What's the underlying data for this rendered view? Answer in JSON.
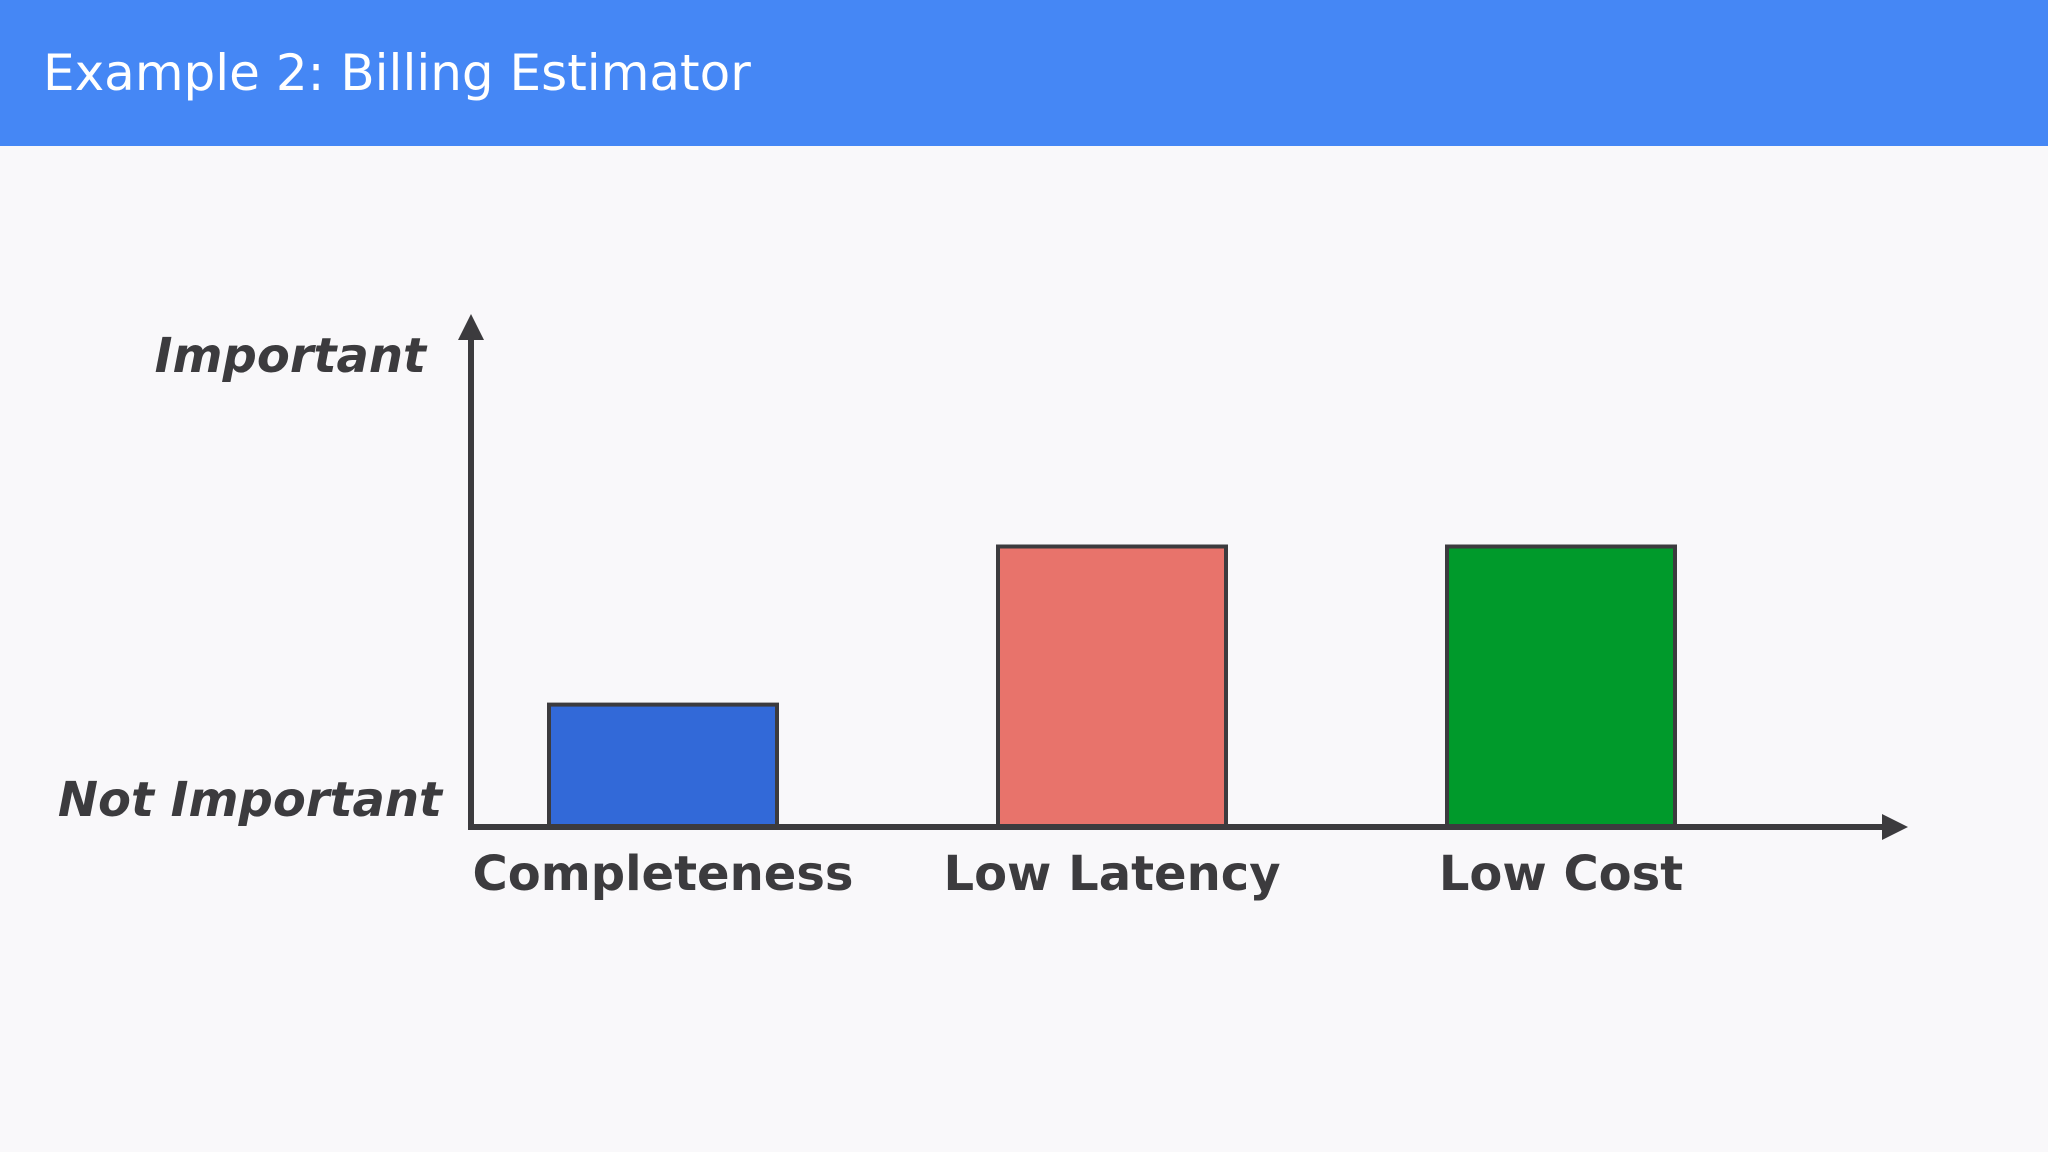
{
  "slide": {
    "title": "Example 2: Billing Estimator"
  },
  "chart_data": {
    "type": "bar",
    "title": "",
    "xlabel": "",
    "ylabel": "",
    "y_tick_labels": {
      "low": "Not Important",
      "high": "Important"
    },
    "categories": [
      "Completeness",
      "Low Latency",
      "Low Cost"
    ],
    "values": [
      0.24,
      0.55,
      0.55
    ],
    "ylim": [
      0,
      1
    ],
    "bar_colors": [
      "#3269d8",
      "#e8736b",
      "#009a2b"
    ],
    "axis_color": "#3c3b3e",
    "grid": false,
    "legend": "none"
  }
}
